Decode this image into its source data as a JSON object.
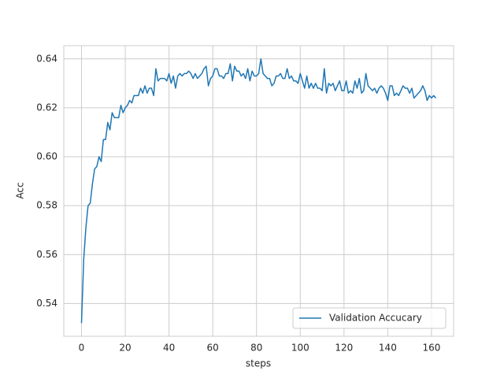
{
  "chart_data": {
    "type": "line",
    "xlabel": "steps",
    "ylabel": "Acc",
    "x": [
      0,
      1,
      2,
      3,
      4,
      5,
      6,
      7,
      8,
      9,
      10,
      11,
      12,
      13,
      14,
      15,
      16,
      17,
      18,
      19,
      20,
      21,
      22,
      23,
      24,
      25,
      26,
      27,
      28,
      29,
      30,
      31,
      32,
      33,
      34,
      35,
      36,
      37,
      38,
      39,
      40,
      41,
      42,
      43,
      44,
      45,
      46,
      47,
      48,
      49,
      50,
      51,
      52,
      53,
      54,
      55,
      56,
      57,
      58,
      59,
      60,
      61,
      62,
      63,
      64,
      65,
      66,
      67,
      68,
      69,
      70,
      71,
      72,
      73,
      74,
      75,
      76,
      77,
      78,
      79,
      80,
      81,
      82,
      83,
      84,
      85,
      86,
      87,
      88,
      89,
      90,
      91,
      92,
      93,
      94,
      95,
      96,
      97,
      98,
      99,
      100,
      101,
      102,
      103,
      104,
      105,
      106,
      107,
      108,
      109,
      110,
      111,
      112,
      113,
      114,
      115,
      116,
      117,
      118,
      119,
      120,
      121,
      122,
      123,
      124,
      125,
      126,
      127,
      128,
      129,
      130,
      131,
      132,
      133,
      134,
      135,
      136,
      137,
      138,
      139,
      140,
      141,
      142,
      143,
      144,
      145,
      146,
      147,
      148,
      149,
      150,
      151,
      152,
      153,
      154,
      155,
      156,
      157,
      158,
      159,
      160,
      161,
      162
    ],
    "series": [
      {
        "name": "Validation Accucary",
        "color": "#1f77b4",
        "values": [
          0.532,
          0.558,
          0.571,
          0.58,
          0.581,
          0.589,
          0.595,
          0.596,
          0.6,
          0.598,
          0.607,
          0.607,
          0.614,
          0.611,
          0.618,
          0.616,
          0.616,
          0.616,
          0.621,
          0.618,
          0.62,
          0.621,
          0.623,
          0.622,
          0.625,
          0.625,
          0.625,
          0.628,
          0.626,
          0.629,
          0.626,
          0.628,
          0.628,
          0.625,
          0.636,
          0.631,
          0.632,
          0.632,
          0.632,
          0.631,
          0.634,
          0.63,
          0.633,
          0.628,
          0.633,
          0.634,
          0.633,
          0.634,
          0.634,
          0.635,
          0.634,
          0.632,
          0.634,
          0.632,
          0.633,
          0.634,
          0.636,
          0.637,
          0.629,
          0.632,
          0.633,
          0.636,
          0.636,
          0.633,
          0.633,
          0.632,
          0.634,
          0.634,
          0.638,
          0.631,
          0.637,
          0.635,
          0.635,
          0.633,
          0.634,
          0.632,
          0.636,
          0.631,
          0.635,
          0.633,
          0.633,
          0.634,
          0.64,
          0.634,
          0.633,
          0.632,
          0.632,
          0.629,
          0.63,
          0.633,
          0.633,
          0.634,
          0.632,
          0.632,
          0.636,
          0.632,
          0.633,
          0.631,
          0.631,
          0.63,
          0.634,
          0.631,
          0.628,
          0.633,
          0.628,
          0.63,
          0.628,
          0.63,
          0.628,
          0.628,
          0.627,
          0.636,
          0.626,
          0.63,
          0.629,
          0.63,
          0.627,
          0.629,
          0.631,
          0.627,
          0.627,
          0.631,
          0.626,
          0.627,
          0.626,
          0.631,
          0.628,
          0.632,
          0.626,
          0.627,
          0.634,
          0.629,
          0.628,
          0.627,
          0.628,
          0.626,
          0.628,
          0.629,
          0.628,
          0.626,
          0.623,
          0.629,
          0.629,
          0.625,
          0.626,
          0.625,
          0.627,
          0.629,
          0.628,
          0.628,
          0.626,
          0.628,
          0.624,
          0.625,
          0.626,
          0.627,
          0.629,
          0.627,
          0.623,
          0.625,
          0.624,
          0.625,
          0.624
        ]
      }
    ],
    "xlim": [
      -8.1,
      170.1
    ],
    "xticks": [
      0,
      20,
      40,
      60,
      80,
      100,
      120,
      140,
      160
    ],
    "ylim": [
      0.5266,
      0.6454
    ],
    "yticks": [
      {
        "value": 0.54,
        "label": "0.54"
      },
      {
        "value": 0.56,
        "label": "0.56"
      },
      {
        "value": 0.58,
        "label": "0.58"
      },
      {
        "value": 0.6,
        "label": "0.60"
      },
      {
        "value": 0.62,
        "label": "0.62"
      },
      {
        "value": 0.64,
        "label": "0.64"
      }
    ],
    "grid": true,
    "legend": "lower right"
  }
}
